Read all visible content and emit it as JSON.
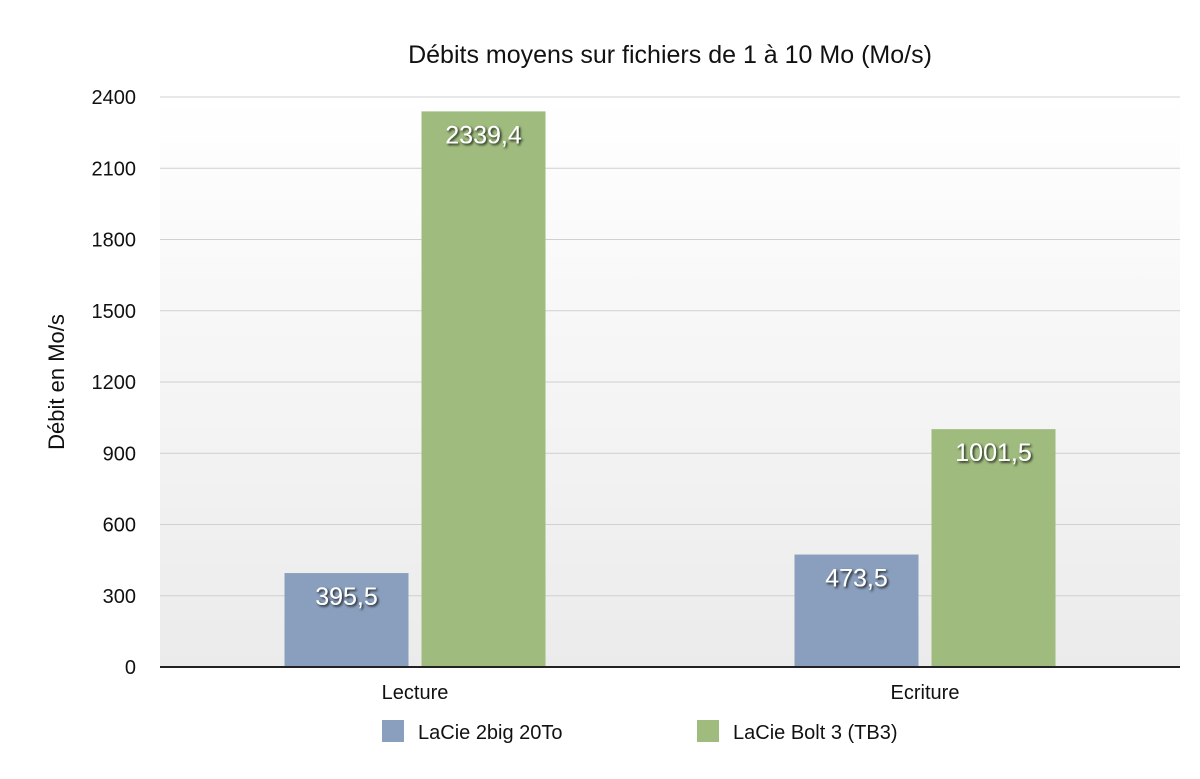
{
  "chart_data": {
    "type": "bar",
    "title": "Débits moyens sur fichiers de 1 à 10 Mo (Mo/s)",
    "xlabel": "",
    "ylabel": "Débit en Mo/s",
    "ylim": [
      0,
      2400
    ],
    "yticks": [
      0,
      300,
      600,
      900,
      1200,
      1500,
      1800,
      2100,
      2400
    ],
    "categories": [
      "Lecture",
      "Ecriture"
    ],
    "series": [
      {
        "name": "LaCie 2big 20To",
        "values": [
          395.5,
          473.5
        ],
        "labels": [
          "395,5",
          "473,5"
        ],
        "color": "#8a9fbd"
      },
      {
        "name": "LaCie Bolt 3 (TB3)",
        "values": [
          2339.4,
          1001.5
        ],
        "labels": [
          "2339,4",
          "1001,5"
        ],
        "color": "#9fbb7e"
      }
    ],
    "grid": true,
    "legend": "bottom",
    "plot_background": "#f2f2f2"
  }
}
